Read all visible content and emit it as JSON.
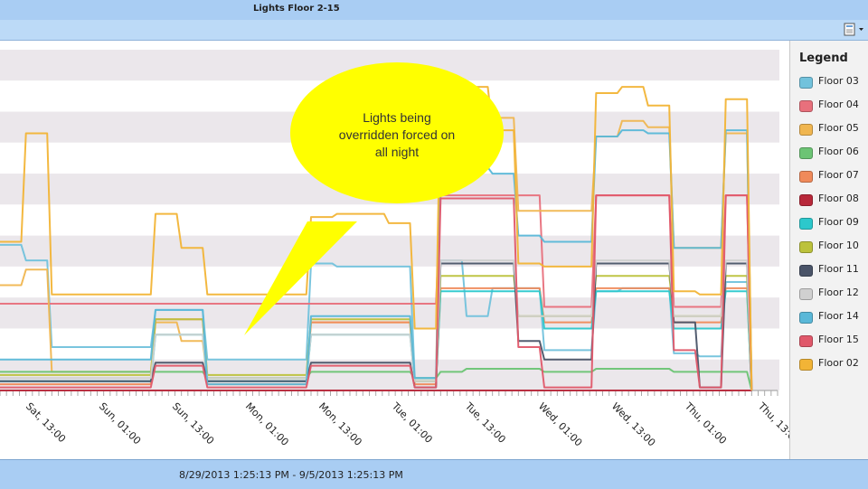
{
  "window": {
    "title": "Lights Floor 2-15"
  },
  "toolbar": {
    "export_icon": "export-icon",
    "dropdown_icon": "chevron-down-icon"
  },
  "legend": {
    "title": "Legend"
  },
  "footer": {
    "date_range": "8/29/2013 1:25:13 PM - 9/5/2013 1:25:13 PM"
  },
  "callout": {
    "lines": [
      "Lights being",
      "overridden forced on",
      "all night"
    ],
    "fill": "#ffff00"
  },
  "chart_data": {
    "type": "line",
    "title": "",
    "xlabel": "",
    "ylabel": "",
    "grid": "horizontal bands",
    "legend_position": "right",
    "ylim": [
      0,
      11
    ],
    "x_ticks": [
      "Sat, 13:00",
      "Sun, 01:00",
      "Sun, 13:00",
      "Mon, 01:00",
      "Mon, 13:00",
      "Tue, 01:00",
      "Tue, 13:00",
      "Wed, 01:00",
      "Wed, 13:00",
      "Thu, 01:00",
      "Thu, 13:00"
    ],
    "x": [
      -6,
      0,
      6,
      12,
      18,
      24,
      30,
      36,
      42,
      48,
      54,
      60,
      66,
      72,
      78,
      84,
      90,
      96,
      102,
      108,
      114,
      120,
      126,
      132,
      138,
      144,
      150,
      156,
      162,
      168
    ],
    "series": [
      {
        "name": "Floor 03",
        "color": "#72c2dc",
        "values": [
          4.7,
          4.2,
          1.4,
          1.4,
          1.4,
          1.4,
          2.6,
          2.6,
          1.0,
          1.0,
          1.0,
          1.0,
          4.1,
          4.0,
          4.0,
          4.0,
          0.4,
          4.2,
          2.4,
          3.3,
          3.3,
          1.3,
          1.3,
          3.2,
          3.3,
          3.3,
          1.2,
          1.1,
          3.5,
          0.0
        ]
      },
      {
        "name": "Floor 04",
        "color": "#e8707c",
        "values": [
          2.8,
          2.8,
          2.8,
          2.8,
          2.8,
          2.8,
          2.8,
          2.8,
          2.8,
          2.8,
          2.8,
          2.8,
          2.8,
          2.8,
          2.8,
          2.8,
          2.8,
          6.3,
          6.3,
          6.3,
          6.3,
          2.7,
          2.7,
          6.3,
          6.3,
          6.3,
          2.7,
          2.7,
          6.3,
          0.0
        ]
      },
      {
        "name": "Floor 05",
        "color": "#f0b650",
        "values": [
          3.4,
          3.9,
          0.6,
          0.6,
          0.6,
          0.6,
          2.2,
          1.6,
          0.4,
          0.4,
          0.4,
          0.4,
          2.2,
          2.2,
          2.2,
          2.2,
          0.3,
          9.0,
          9.0,
          8.8,
          5.8,
          5.8,
          5.8,
          8.2,
          8.7,
          8.5,
          4.6,
          4.6,
          8.3,
          0.2
        ]
      },
      {
        "name": "Floor 06",
        "color": "#6cc474",
        "values": [
          0.6,
          0.6,
          0.6,
          0.6,
          0.6,
          0.6,
          0.6,
          0.6,
          0.4,
          0.4,
          0.4,
          0.4,
          0.6,
          0.6,
          0.6,
          0.6,
          0.4,
          0.6,
          0.7,
          0.7,
          0.7,
          0.6,
          0.6,
          0.7,
          0.7,
          0.7,
          0.6,
          0.6,
          0.6,
          0.0
        ]
      },
      {
        "name": "Floor 07",
        "color": "#f08a5a",
        "values": [
          0.2,
          0.2,
          0.2,
          0.2,
          0.2,
          0.2,
          2.3,
          2.3,
          0.2,
          0.2,
          0.2,
          0.2,
          2.2,
          2.2,
          2.2,
          2.2,
          0.2,
          3.3,
          3.3,
          3.3,
          3.3,
          2.2,
          2.2,
          3.3,
          3.3,
          3.3,
          2.2,
          2.2,
          3.3,
          0.0
        ]
      },
      {
        "name": "Floor 08",
        "color": "#b8283a",
        "values": [
          0.0,
          0.0,
          0.0,
          0.0,
          0.0,
          0.0,
          0.0,
          0.0,
          0.0,
          0.0,
          0.0,
          0.0,
          0.0,
          0.0,
          0.0,
          0.0,
          0.0,
          0.0,
          0.0,
          0.0,
          0.0,
          0.0,
          0.0,
          0.0,
          0.0,
          0.0,
          0.0,
          0.0,
          0.0,
          0.0
        ]
      },
      {
        "name": "Floor 09",
        "color": "#2cc8cc",
        "values": [
          0.3,
          0.3,
          0.3,
          0.3,
          0.3,
          0.3,
          1.8,
          1.8,
          0.3,
          0.3,
          0.3,
          0.3,
          1.8,
          1.8,
          1.8,
          1.8,
          0.3,
          3.2,
          3.2,
          3.2,
          3.2,
          2.0,
          2.0,
          3.2,
          3.2,
          3.2,
          2.0,
          2.0,
          3.2,
          0.0
        ]
      },
      {
        "name": "Floor 10",
        "color": "#bcc23c",
        "values": [
          0.5,
          0.5,
          0.5,
          0.5,
          0.5,
          0.5,
          2.3,
          2.3,
          0.5,
          0.5,
          0.5,
          0.5,
          2.3,
          2.3,
          2.3,
          2.3,
          0.3,
          3.7,
          3.7,
          3.7,
          2.4,
          2.4,
          2.4,
          3.7,
          3.7,
          3.7,
          2.4,
          2.4,
          3.7,
          0.0
        ]
      },
      {
        "name": "Floor 11",
        "color": "#4a5468",
        "values": [
          0.3,
          0.3,
          0.3,
          0.3,
          0.3,
          0.3,
          0.9,
          0.9,
          0.3,
          0.3,
          0.3,
          0.3,
          0.9,
          0.9,
          0.9,
          0.9,
          0.1,
          4.1,
          4.1,
          4.1,
          1.6,
          1.0,
          1.0,
          4.1,
          4.1,
          4.1,
          2.2,
          0.1,
          4.1,
          0.0
        ]
      },
      {
        "name": "Floor 12",
        "color": "#d0d0d0",
        "values": [
          0.4,
          0.4,
          0.4,
          0.4,
          0.4,
          0.4,
          1.8,
          1.8,
          0.4,
          0.4,
          0.4,
          0.4,
          1.8,
          1.8,
          1.8,
          1.8,
          0.3,
          4.2,
          4.2,
          4.2,
          2.4,
          2.4,
          2.4,
          4.2,
          4.2,
          4.2,
          2.4,
          2.4,
          4.2,
          0.0
        ]
      },
      {
        "name": "Floor 14",
        "color": "#5ab8d8",
        "values": [
          1.0,
          1.0,
          1.0,
          1.0,
          1.0,
          1.0,
          2.6,
          2.6,
          0.2,
          0.2,
          0.2,
          0.2,
          2.4,
          2.4,
          2.4,
          2.4,
          0.4,
          7.2,
          7.2,
          7.0,
          5.0,
          4.8,
          4.8,
          8.2,
          8.4,
          8.3,
          4.6,
          4.6,
          8.4,
          0.0
        ]
      },
      {
        "name": "Floor 15",
        "color": "#e0586a",
        "values": [
          0.1,
          0.1,
          0.1,
          0.1,
          0.1,
          0.1,
          0.8,
          0.8,
          0.1,
          0.1,
          0.1,
          0.1,
          0.8,
          0.8,
          0.8,
          0.8,
          0.1,
          6.2,
          6.2,
          6.2,
          1.4,
          0.1,
          0.1,
          6.3,
          6.3,
          6.3,
          1.3,
          0.1,
          6.3,
          0.0
        ]
      },
      {
        "name": "Floor 02",
        "color": "#f2b436",
        "values": [
          4.8,
          8.3,
          3.1,
          3.1,
          3.1,
          3.1,
          5.7,
          4.6,
          3.1,
          3.1,
          3.1,
          3.1,
          5.6,
          5.7,
          5.7,
          5.4,
          2.0,
          9.8,
          9.8,
          8.4,
          4.1,
          4.0,
          4.0,
          9.6,
          9.8,
          9.2,
          3.2,
          3.1,
          9.4,
          0.0
        ]
      }
    ]
  }
}
